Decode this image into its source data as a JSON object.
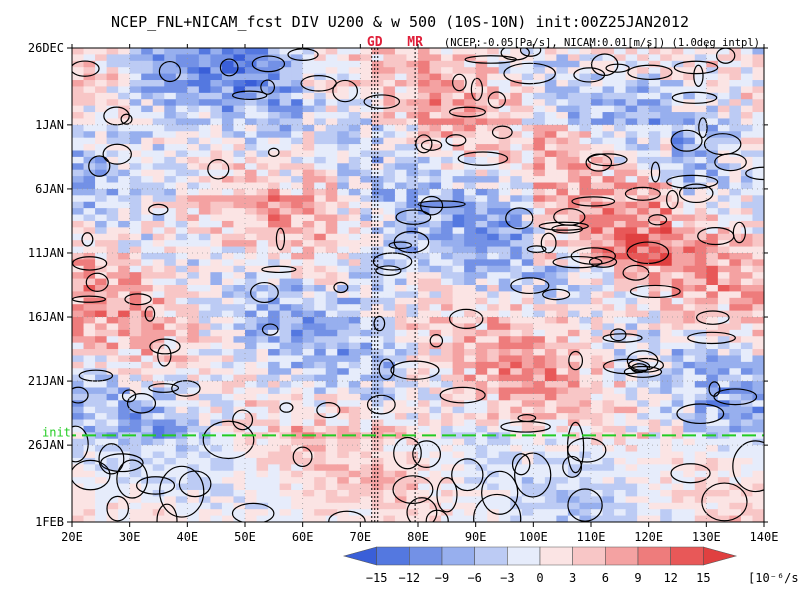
{
  "chart_data": {
    "type": "heatmap",
    "title": "NCEP_FNL+NICAM_fcst DIV U200 & w 500 (10S-10N) init:00Z25JAN2012",
    "subtitle": "(NCEP:-0.05[Pa/s], NICAM:0.01[m/s]) (1.0deg intpl)",
    "x_ticks": [
      "20E",
      "30E",
      "40E",
      "50E",
      "60E",
      "70E",
      "80E",
      "90E",
      "100E",
      "110E",
      "120E",
      "130E",
      "140E"
    ],
    "x_tick_values": [
      20,
      30,
      40,
      50,
      60,
      70,
      80,
      90,
      100,
      110,
      120,
      130,
      140
    ],
    "xlim": [
      20,
      140
    ],
    "y_ticks": [
      "26DEC",
      "1JAN",
      "6JAN",
      "11JAN",
      "16JAN",
      "21JAN",
      "26JAN",
      "1FEB"
    ],
    "y_tick_values": [
      "2011-12-26",
      "2012-01-01",
      "2012-01-06",
      "2012-01-11",
      "2012-01-16",
      "2012-01-21",
      "2012-01-26",
      "2012-02-01"
    ],
    "ylim": [
      "2011-12-26",
      "2012-02-01"
    ],
    "markers": [
      {
        "label": "GD",
        "lon": 72.5,
        "color": "#e0203a"
      },
      {
        "label": "MR",
        "lon": 79.5,
        "color": "#e0203a"
      }
    ],
    "init_line": {
      "label": "init",
      "date": "2012-01-25",
      "color": "#22cc22"
    },
    "colorbar": {
      "levels": [
        "-15",
        "-12",
        "-9",
        "-6",
        "-3",
        "0",
        "3",
        "6",
        "9",
        "12",
        "15"
      ],
      "unit": "[10⁻⁶/s]",
      "colors": [
        "#3a5fd8",
        "#5478e0",
        "#7391e6",
        "#97afee",
        "#bccbf4",
        "#e6ecfb",
        "#fbe4e4",
        "#f8c6c6",
        "#f4a2a2",
        "#ee7c7c",
        "#e85858",
        "#e04040"
      ]
    },
    "grid": true
  }
}
